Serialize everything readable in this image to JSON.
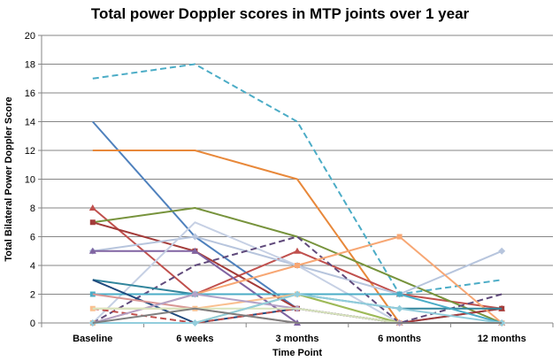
{
  "chart_data": {
    "type": "line",
    "title": "Total power Doppler scores in MTP joints over 1 year",
    "xlabel": "Time Point",
    "ylabel": "Total Bilateral Power Doppler Score",
    "categories": [
      "Baseline",
      "6 weeks",
      "3 months",
      "6 months",
      "12 months"
    ],
    "ylim": [
      0,
      20
    ],
    "yticks": [
      0,
      2,
      4,
      6,
      8,
      10,
      12,
      14,
      16,
      18,
      20
    ],
    "grid": "horizontal",
    "series": [
      {
        "values": [
          17,
          18,
          14,
          2,
          3
        ],
        "color": "#4BACC6",
        "dash": true,
        "marker": "none"
      },
      {
        "values": [
          14,
          6,
          1,
          0,
          1
        ],
        "color": "#4F81BD",
        "dash": false,
        "marker": "none"
      },
      {
        "values": [
          12,
          12,
          10,
          0,
          0
        ],
        "color": "#E8883A",
        "dash": false,
        "marker": "none"
      },
      {
        "values": [
          8,
          2,
          5,
          2,
          1
        ],
        "color": "#C0504D",
        "dash": false,
        "marker": "triangle"
      },
      {
        "values": [
          7,
          8,
          6,
          3,
          0
        ],
        "color": "#77933C",
        "dash": false,
        "marker": "none"
      },
      {
        "values": [
          7,
          5,
          1,
          0,
          1
        ],
        "color": "#A33B39",
        "dash": false,
        "marker": "square"
      },
      {
        "values": [
          5,
          6,
          4,
          2,
          5
        ],
        "color": "#B7C5DD",
        "dash": false,
        "marker": "diamond"
      },
      {
        "values": [
          5,
          5,
          0,
          0,
          0
        ],
        "color": "#8064A2",
        "dash": false,
        "marker": "triangle"
      },
      {
        "values": [
          0,
          7,
          4,
          0,
          0
        ],
        "color": "#C6D0E4",
        "dash": false,
        "marker": "none"
      },
      {
        "values": [
          0,
          4,
          6,
          0,
          2
        ],
        "color": "#604A7B",
        "dash": true,
        "marker": "none"
      },
      {
        "values": [
          0,
          2,
          4,
          6,
          0
        ],
        "color": "#F7A774",
        "dash": false,
        "marker": "square"
      },
      {
        "values": [
          3,
          2,
          2,
          1,
          1
        ],
        "color": "#31859C",
        "dash": false,
        "marker": "none"
      },
      {
        "values": [
          2,
          2,
          2,
          2,
          0
        ],
        "color": "#4BACC6",
        "dash": false,
        "marker": "square"
      },
      {
        "values": [
          3,
          0,
          1,
          0,
          0
        ],
        "color": "#1F497D",
        "dash": false,
        "marker": "none"
      },
      {
        "values": [
          1,
          0,
          1,
          0,
          0
        ],
        "color": "#C0504D",
        "dash": true,
        "marker": "none"
      },
      {
        "values": [
          1,
          1,
          2,
          0,
          0
        ],
        "color": "#FAC090",
        "dash": false,
        "marker": "square"
      },
      {
        "values": [
          2,
          1,
          0,
          0,
          0
        ],
        "color": "#D99694",
        "dash": false,
        "marker": "none"
      },
      {
        "values": [
          0,
          0,
          2,
          0,
          0
        ],
        "color": "#9BBB59",
        "dash": false,
        "marker": "none"
      },
      {
        "values": [
          0,
          2,
          1,
          0,
          0
        ],
        "color": "#B3A2C7",
        "dash": false,
        "marker": "diamond"
      },
      {
        "values": [
          1,
          1,
          1,
          0,
          0
        ],
        "color": "#D7E4BD",
        "dash": false,
        "marker": "none"
      },
      {
        "values": [
          0,
          0,
          2,
          1,
          0
        ],
        "color": "#92CDDC",
        "dash": false,
        "marker": "diamond"
      },
      {
        "values": [
          0,
          1,
          0,
          0,
          0
        ],
        "color": "#7F7F7F",
        "dash": false,
        "marker": "none"
      }
    ]
  }
}
